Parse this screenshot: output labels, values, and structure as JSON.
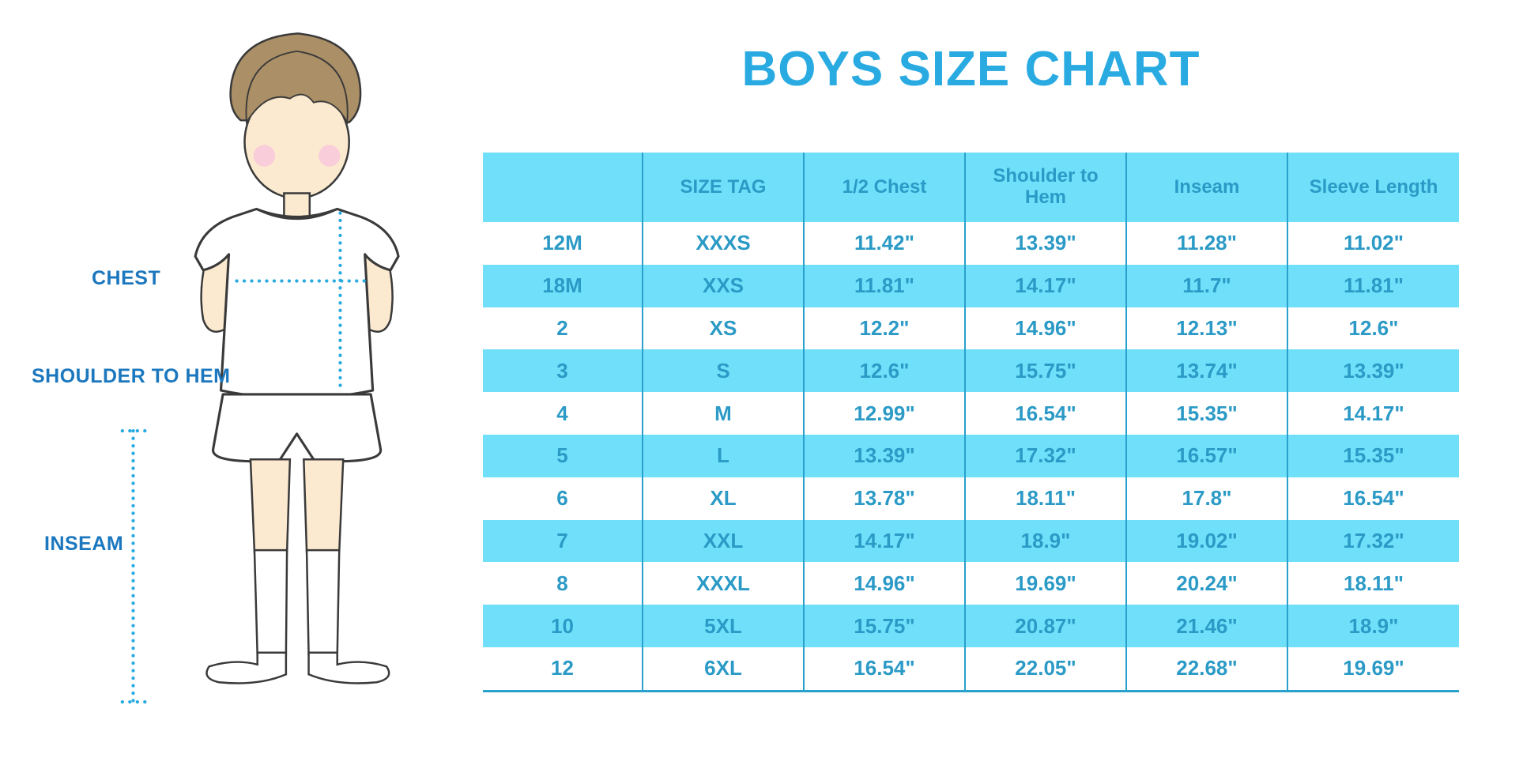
{
  "title": "BOYS SIZE CHART",
  "figure": {
    "labels": {
      "chest": "CHEST",
      "shoulder_to_hem": "SHOULDER TO HEM",
      "inseam": "INSEAM"
    }
  },
  "colors": {
    "accent_blue": "#29ABE2",
    "band_blue": "#70E0FA",
    "table_text_blue": "#2B9AC6",
    "table_line_blue": "#2AA0CC",
    "label_blue": "#1C78BE"
  },
  "chart_data": {
    "type": "table",
    "title": "BOYS SIZE CHART",
    "columns": [
      "",
      "SIZE TAG",
      "1/2 Chest",
      "Shoulder to Hem",
      "Inseam",
      "Sleeve Length"
    ],
    "rows": [
      [
        "12M",
        "XXXS",
        "11.42\"",
        "13.39\"",
        "11.28\"",
        "11.02\""
      ],
      [
        "18M",
        "XXS",
        "11.81\"",
        "14.17\"",
        "11.7\"",
        "11.81\""
      ],
      [
        "2",
        "XS",
        "12.2\"",
        "14.96\"",
        "12.13\"",
        "12.6\""
      ],
      [
        "3",
        "S",
        "12.6\"",
        "15.75\"",
        "13.74\"",
        "13.39\""
      ],
      [
        "4",
        "M",
        "12.99\"",
        "16.54\"",
        "15.35\"",
        "14.17\""
      ],
      [
        "5",
        "L",
        "13.39\"",
        "17.32\"",
        "16.57\"",
        "15.35\""
      ],
      [
        "6",
        "XL",
        "13.78\"",
        "18.11\"",
        "17.8\"",
        "16.54\""
      ],
      [
        "7",
        "XXL",
        "14.17\"",
        "18.9\"",
        "19.02\"",
        "17.32\""
      ],
      [
        "8",
        "XXXL",
        "14.96\"",
        "19.69\"",
        "20.24\"",
        "18.11\""
      ],
      [
        "10",
        "5XL",
        "15.75\"",
        "20.87\"",
        "21.46\"",
        "18.9\""
      ],
      [
        "12",
        "6XL",
        "16.54\"",
        "22.05\"",
        "22.68\"",
        "19.69\""
      ]
    ]
  }
}
